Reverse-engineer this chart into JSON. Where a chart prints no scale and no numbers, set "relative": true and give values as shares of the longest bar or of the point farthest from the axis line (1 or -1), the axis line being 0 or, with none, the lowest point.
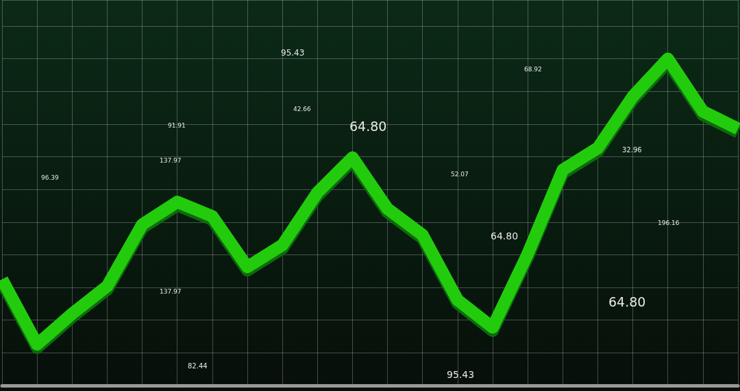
{
  "chart_data": {
    "type": "line",
    "relative": true,
    "color": "#22cc11",
    "grid": true,
    "marker": "none",
    "line_style": "solid",
    "categories": [
      null,
      null,
      null,
      null,
      null,
      null,
      null,
      null,
      null,
      null,
      null,
      null,
      null,
      null,
      null,
      null,
      null,
      null,
      null,
      null,
      null,
      null
    ],
    "values": [
      0.325,
      0.126,
      0.22,
      0.304,
      0.493,
      0.562,
      0.518,
      0.363,
      0.43,
      0.591,
      0.698,
      0.541,
      0.461,
      0.262,
      0.178,
      0.403,
      0.66,
      0.727,
      0.885,
      1,
      0.839,
      0.786
    ],
    "annotations": [
      "95.43",
      "42.66",
      "91.91",
      "137.97",
      "96.39",
      "64.80",
      "68.92",
      "52.07",
      "32.96",
      "64.80",
      "196.16",
      "137.97",
      "64.80",
      "82.44",
      "95.43"
    ]
  }
}
